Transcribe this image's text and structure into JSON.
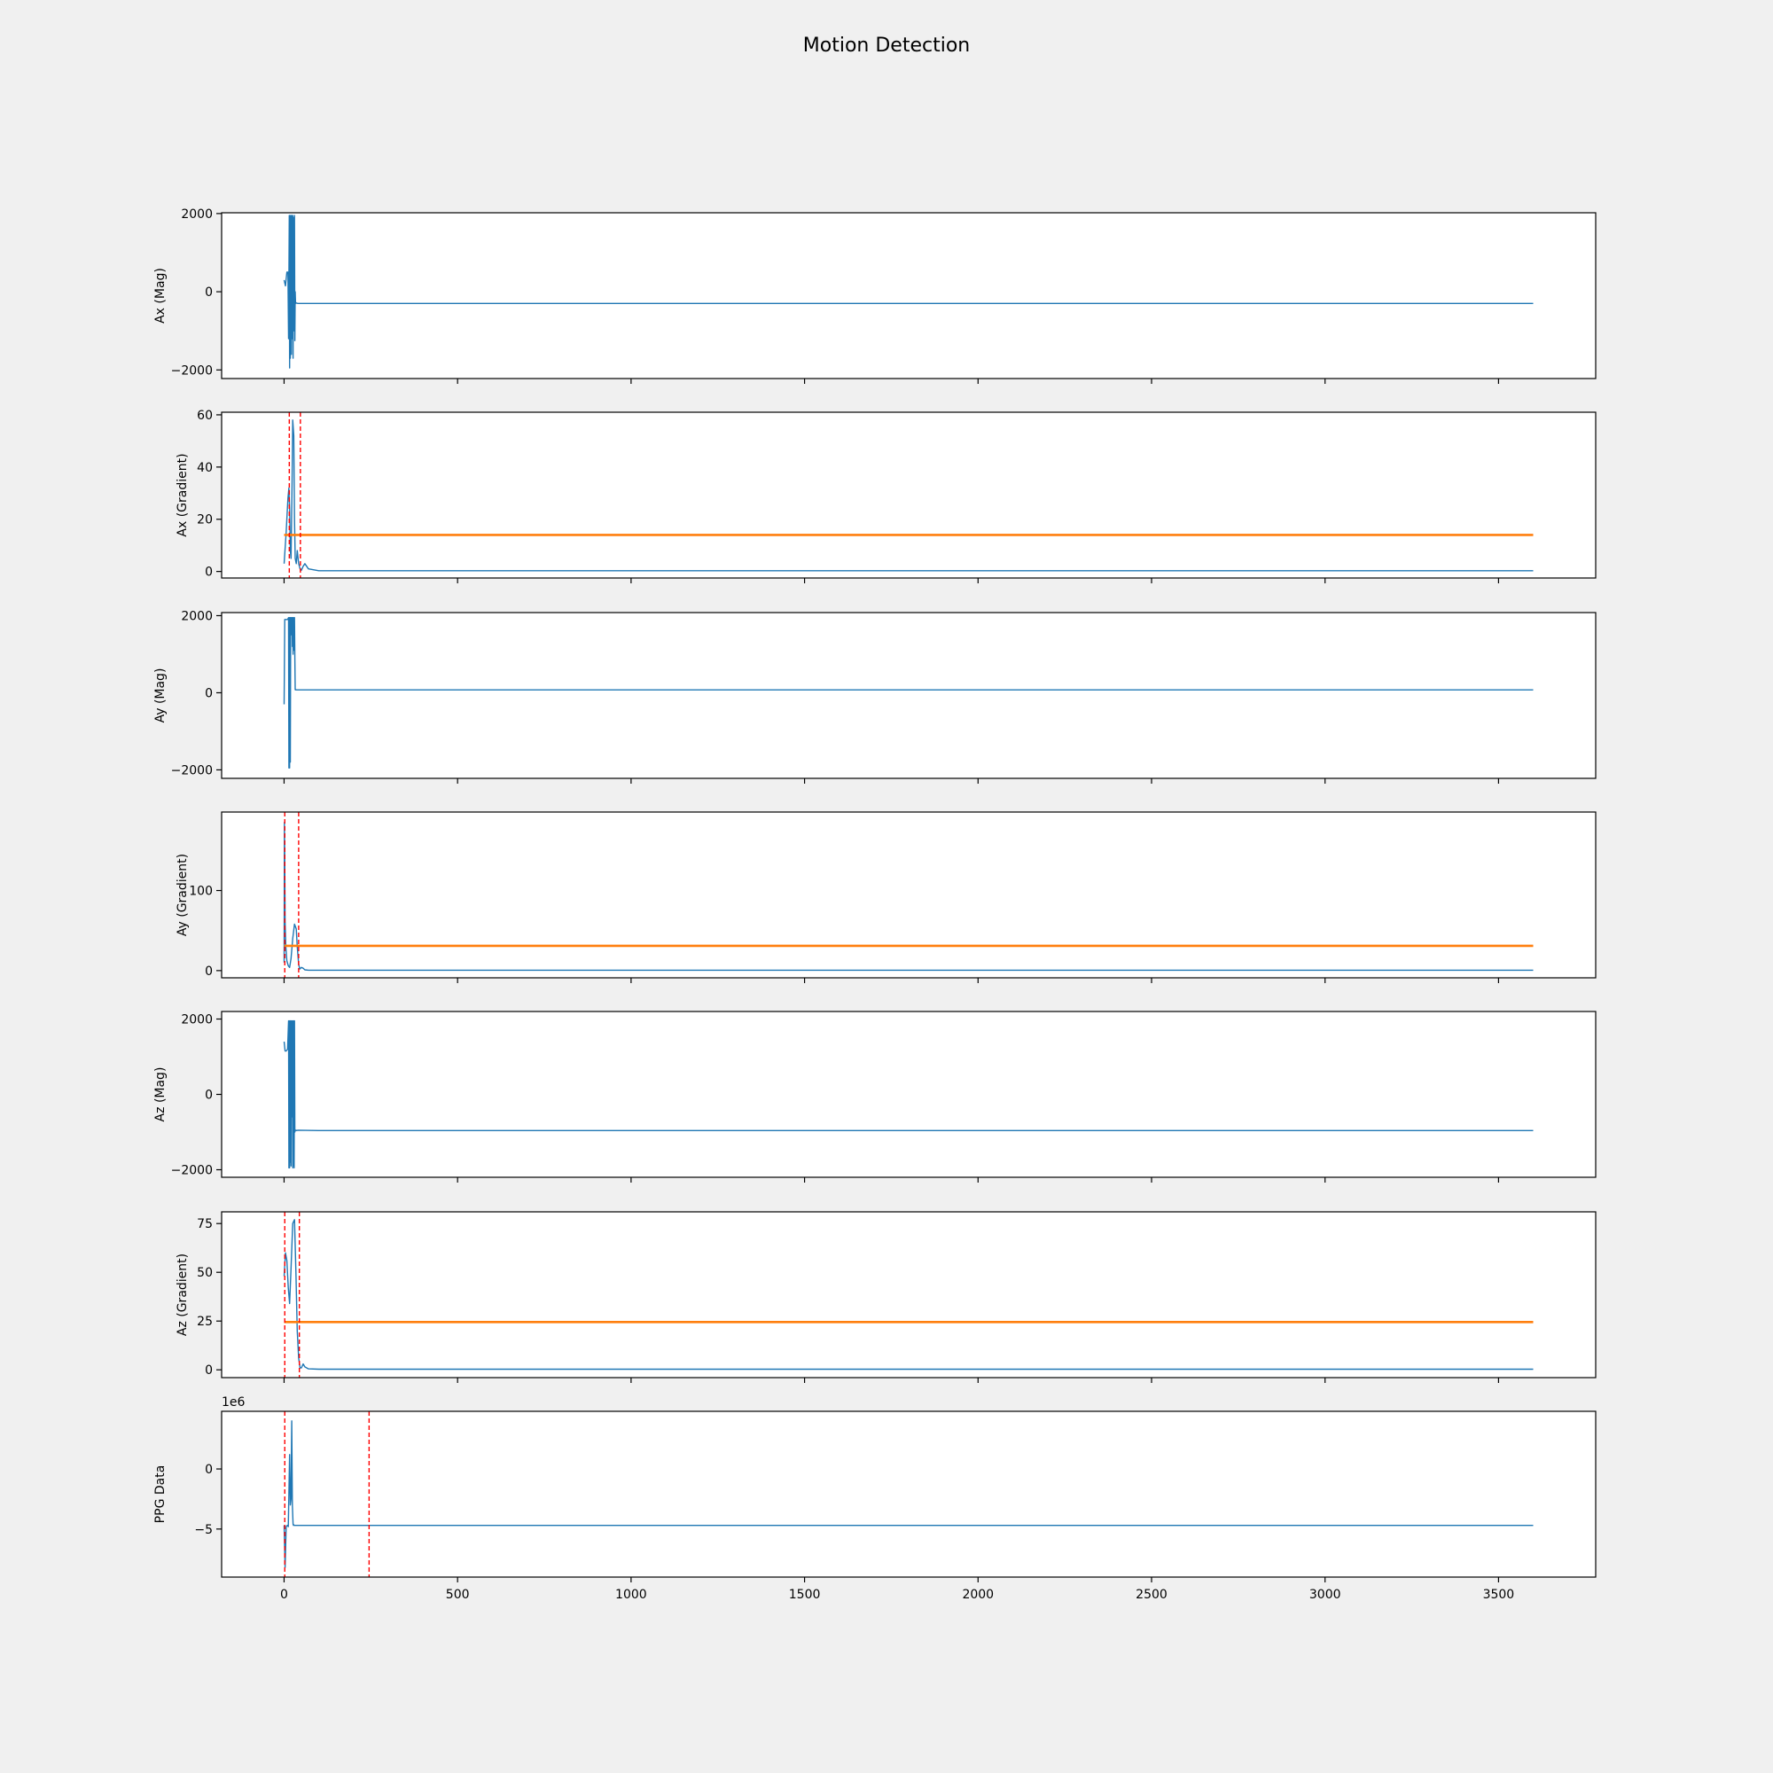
{
  "title": "Motion Detection",
  "colors": {
    "figure_bg": "#f0f0f0",
    "axes_bg": "#ffffff",
    "signal": "#1f77b4",
    "threshold": "#ff7f0e",
    "event_marker": "#ff0000"
  },
  "chart_data": [
    {
      "type": "line",
      "ylabel": "Ax (Mag)",
      "xlim": [
        -180,
        3780
      ],
      "ylim": [
        -2220,
        2020
      ],
      "yticks": [
        -2000,
        0,
        2000
      ],
      "ytick_labels": [
        "−2000",
        "0",
        "2000"
      ],
      "series": [
        {
          "role": "signal",
          "x": [
            0,
            4,
            8,
            11,
            13,
            15,
            16,
            17,
            18,
            19,
            20,
            21,
            22,
            23,
            24,
            25,
            26,
            27,
            28,
            29,
            30,
            31,
            32,
            33,
            34,
            36,
            40,
            100,
            500,
            1000,
            1500,
            2000,
            2500,
            3000,
            3500,
            3600
          ],
          "y": [
            300,
            150,
            500,
            500,
            -1200,
            1950,
            -1950,
            1950,
            -1700,
            1000,
            1950,
            -1600,
            1950,
            1000,
            -1200,
            1950,
            -1700,
            1900,
            1000,
            -1000,
            1950,
            -1250,
            0,
            -300,
            -280,
            -290,
            -300,
            -300,
            -300,
            -300,
            -300,
            -300,
            -300,
            -300,
            -300,
            -300
          ]
        }
      ],
      "vlines": []
    },
    {
      "type": "line",
      "ylabel": "Ax (Gradient)",
      "xlim": [
        -180,
        3780
      ],
      "ylim": [
        -2.5,
        61
      ],
      "yticks": [
        0,
        20,
        40,
        60
      ],
      "ytick_labels": [
        "0",
        "20",
        "40",
        "60"
      ],
      "series": [
        {
          "role": "signal",
          "x": [
            0,
            6,
            11,
            14,
            16,
            18,
            20,
            23,
            25,
            28,
            30,
            32,
            35,
            38,
            42,
            46,
            50,
            55,
            60,
            70,
            100,
            500,
            1000,
            1500,
            2000,
            2500,
            3000,
            3500,
            3600
          ],
          "y": [
            3,
            15,
            28,
            32,
            24,
            8,
            5,
            35,
            58,
            52,
            20,
            5,
            3,
            8,
            3,
            1,
            0.5,
            2,
            3,
            1,
            0.3,
            0.3,
            0.3,
            0.3,
            0.3,
            0.3,
            0.3,
            0.3,
            0.3
          ]
        },
        {
          "role": "threshold",
          "x": [
            0,
            3600
          ],
          "y": [
            14,
            14
          ]
        }
      ],
      "vlines": [
        15,
        47
      ]
    },
    {
      "type": "line",
      "ylabel": "Ay (Mag)",
      "xlim": [
        -180,
        3780
      ],
      "ylim": [
        -2220,
        2080
      ],
      "yticks": [
        -2000,
        0,
        2000
      ],
      "ytick_labels": [
        "−2000",
        "0",
        "2000"
      ],
      "series": [
        {
          "role": "signal",
          "x": [
            0,
            2,
            5,
            10,
            13,
            14,
            15,
            16,
            17,
            18,
            19,
            20,
            21,
            22,
            23,
            24,
            25,
            26,
            27,
            28,
            29,
            30,
            31,
            32,
            33,
            34,
            36,
            40,
            100,
            500,
            1000,
            1500,
            2000,
            2500,
            3000,
            3500,
            3600
          ],
          "y": [
            -300,
            1900,
            1900,
            1900,
            1950,
            -1950,
            1950,
            -1950,
            1950,
            -1800,
            1950,
            1800,
            1950,
            1500,
            1950,
            1200,
            1950,
            1000,
            1950,
            1700,
            1100,
            1950,
            900,
            80,
            75,
            80,
            75,
            75,
            75,
            75,
            75,
            75,
            75,
            75,
            75,
            75,
            75
          ]
        }
      ],
      "vlines": []
    },
    {
      "type": "line",
      "ylabel": "Ay (Gradient)",
      "xlim": [
        -180,
        3780
      ],
      "ylim": [
        -9,
        198
      ],
      "yticks": [
        0,
        100
      ],
      "ytick_labels": [
        "0",
        "100"
      ],
      "series": [
        {
          "role": "signal",
          "x": [
            0,
            1,
            2,
            3,
            5,
            8,
            12,
            16,
            20,
            25,
            30,
            35,
            38,
            42,
            45,
            50,
            55,
            60,
            70,
            100,
            500,
            1000,
            1500,
            2000,
            2500,
            3000,
            3500,
            3600
          ],
          "y": [
            10,
            185,
            140,
            60,
            30,
            12,
            6,
            4,
            15,
            40,
            58,
            52,
            30,
            8,
            2,
            4,
            3,
            1,
            0.5,
            0.5,
            0.5,
            0.5,
            0.5,
            0.5,
            0.5,
            0.5,
            0.5,
            0.5
          ]
        },
        {
          "role": "threshold",
          "x": [
            0,
            3600
          ],
          "y": [
            31,
            31
          ]
        }
      ],
      "vlines": [
        2,
        42
      ]
    },
    {
      "type": "line",
      "ylabel": "Az (Mag)",
      "xlim": [
        -180,
        3780
      ],
      "ylim": [
        -2200,
        2200
      ],
      "yticks": [
        -2000,
        0,
        2000
      ],
      "ytick_labels": [
        "−2000",
        "0",
        "2000"
      ],
      "series": [
        {
          "role": "signal",
          "x": [
            0,
            3,
            6,
            10,
            13,
            14,
            15,
            16,
            17,
            18,
            19,
            20,
            21,
            22,
            23,
            24,
            25,
            26,
            27,
            28,
            29,
            30,
            31,
            32,
            33,
            34,
            36,
            40,
            100,
            500,
            1000,
            1500,
            2000,
            2500,
            3000,
            3500,
            3600
          ],
          "y": [
            1400,
            1150,
            1150,
            1200,
            1950,
            -1950,
            1950,
            -1950,
            1950,
            -1800,
            1950,
            -1900,
            1950,
            1000,
            -600,
            1950,
            -1950,
            1950,
            -1900,
            1950,
            -1950,
            1950,
            -1000,
            -950,
            -960,
            -950,
            -960,
            -950,
            -960,
            -960,
            -960,
            -960,
            -960,
            -960,
            -960,
            -960,
            -960
          ]
        }
      ],
      "vlines": []
    },
    {
      "type": "line",
      "ylabel": "Az (Gradient)",
      "xlim": [
        -180,
        3780
      ],
      "ylim": [
        -4,
        81
      ],
      "yticks": [
        0,
        25,
        50,
        75
      ],
      "ytick_labels": [
        "0",
        "25",
        "50",
        "75"
      ],
      "series": [
        {
          "role": "signal",
          "x": [
            0,
            4,
            8,
            12,
            16,
            20,
            25,
            30,
            34,
            38,
            42,
            46,
            50,
            55,
            60,
            70,
            100,
            500,
            1000,
            1500,
            2000,
            2500,
            3000,
            3500,
            3600
          ],
          "y": [
            48,
            60,
            56,
            42,
            34,
            52,
            75,
            77,
            50,
            20,
            6,
            1,
            1,
            3,
            1.5,
            0.5,
            0.3,
            0.3,
            0.3,
            0.3,
            0.3,
            0.3,
            0.3,
            0.3,
            0.3
          ]
        },
        {
          "role": "threshold",
          "x": [
            0,
            3600
          ],
          "y": [
            24.5,
            24.5
          ]
        }
      ],
      "vlines": [
        2,
        44
      ]
    },
    {
      "type": "line",
      "ylabel": "PPG Data",
      "offset_label": "1e6",
      "xlim": [
        -180,
        3780
      ],
      "ylim": [
        -9.0,
        4.8
      ],
      "yticks": [
        -5,
        0
      ],
      "ytick_labels": [
        "−5",
        "0"
      ],
      "xticks": [
        0,
        500,
        1000,
        1500,
        2000,
        2500,
        3000,
        3500
      ],
      "xtick_labels": [
        "0",
        "500",
        "1000",
        "1500",
        "2000",
        "2500",
        "3000",
        "3500"
      ],
      "series": [
        {
          "role": "signal",
          "x": [
            0,
            3,
            6,
            9,
            12,
            14,
            16,
            18,
            20,
            22,
            24,
            26,
            27,
            28,
            30,
            32,
            36,
            40,
            100,
            500,
            1000,
            1500,
            2000,
            2500,
            3000,
            3500,
            3600
          ],
          "y": [
            -4.7,
            -8.2,
            -4.8,
            -4.7,
            -4.8,
            -2.0,
            1.2,
            -3.0,
            -2.5,
            4.0,
            -3.0,
            -4.6,
            -4.7,
            -4.65,
            -4.7,
            -4.7,
            -4.7,
            -4.7,
            -4.7,
            -4.7,
            -4.7,
            -4.7,
            -4.7,
            -4.7,
            -4.7,
            -4.7,
            -4.7
          ]
        }
      ],
      "vlines": [
        2,
        245
      ]
    }
  ]
}
